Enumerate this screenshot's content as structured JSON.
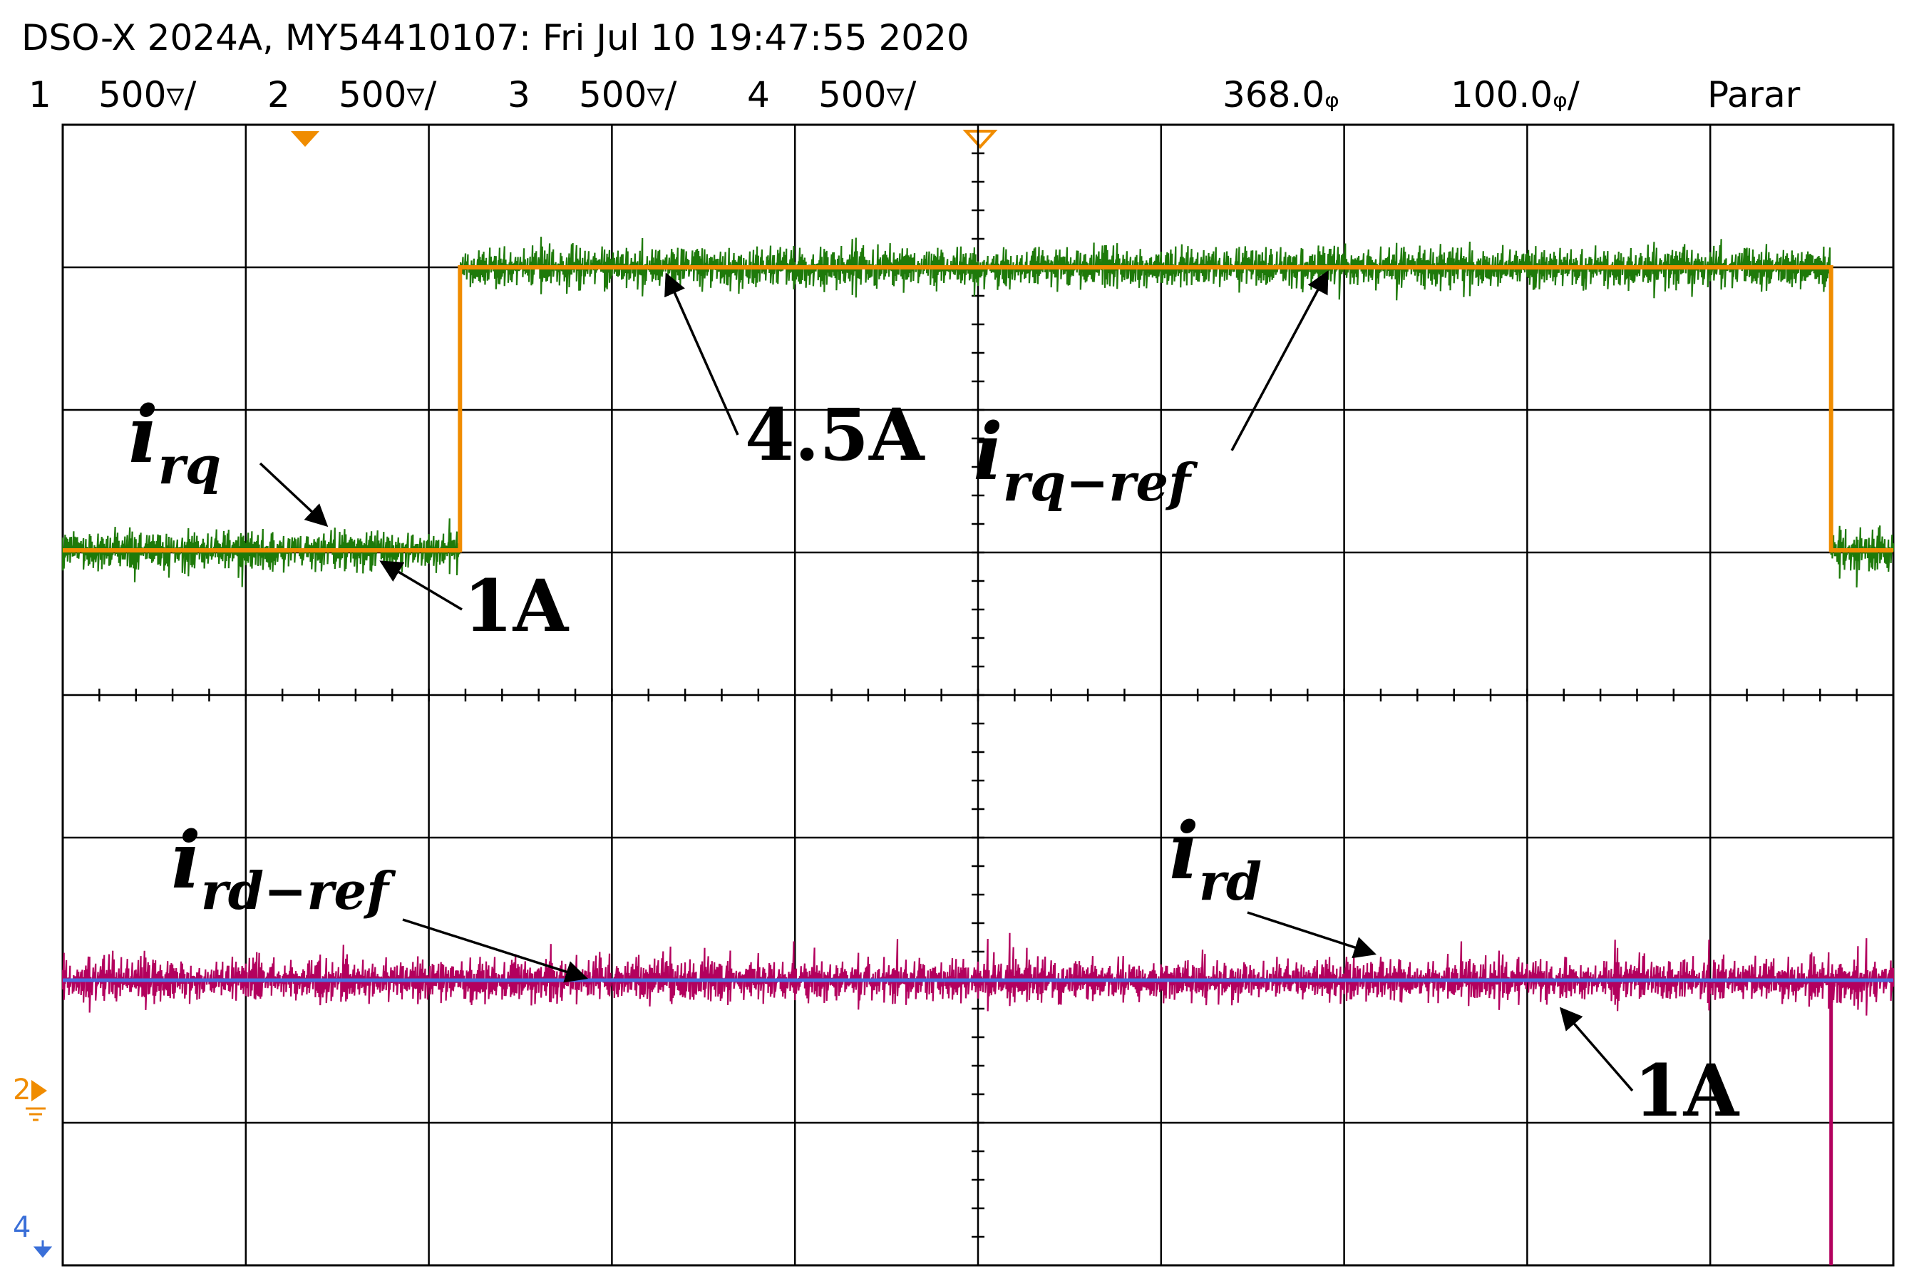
{
  "header": {
    "title": "DSO-X 2024A, MY54410107: Fri Jul 10 19:47:55 2020",
    "channels": [
      {
        "num": "1",
        "scale": "500▿/",
        "color": "#f39c12"
      },
      {
        "num": "2",
        "scale": "500▿/",
        "color": "#2ca02c"
      },
      {
        "num": "3",
        "scale": "500▿/",
        "color": "#3a6fd8"
      },
      {
        "num": "4",
        "scale": "500▿/",
        "color": "#e0107a"
      }
    ],
    "delay": "368.0ᵩ",
    "timebase": "100.0ᵩ/",
    "status": "Parar"
  },
  "markers": {
    "ch2_ground": "2",
    "ch4_ground": "4"
  },
  "annotations": {
    "irq": {
      "base": "i",
      "sub": "rq"
    },
    "irq_ref": {
      "base": "i",
      "sub": "rq−ref"
    },
    "ird_ref": {
      "base": "i",
      "sub": "rd−ref"
    },
    "ird": {
      "base": "i",
      "sub": "rd"
    },
    "val_45a": "4.5A",
    "val_1a_top": "1A",
    "val_1a_bottom": "1A"
  },
  "colors": {
    "irq_trace": "#1e7a0a",
    "irq_ref_trace": "#f08c00",
    "ird_trace": "#b3005e",
    "ird_ref_trace": "#4a6ee0",
    "grid": "#000000"
  },
  "chart_data": {
    "type": "line",
    "grid": true,
    "x_divisions": 10,
    "y_divisions": 8,
    "series": [
      {
        "name": "i_rq",
        "values": [
          {
            "x": 0,
            "y": 1.0
          },
          {
            "x": 2.17,
            "y": 1.0
          },
          {
            "x": 2.17,
            "y": 4.5
          },
          {
            "x": 9.66,
            "y": 4.5
          },
          {
            "x": 9.66,
            "y": 1.0
          },
          {
            "x": 10,
            "y": 1.0
          }
        ]
      },
      {
        "name": "i_rq-ref",
        "values": [
          {
            "x": 0,
            "y": 1.0
          },
          {
            "x": 2.17,
            "y": 1.0
          },
          {
            "x": 2.17,
            "y": 4.5
          },
          {
            "x": 9.66,
            "y": 4.5
          },
          {
            "x": 9.66,
            "y": 1.0
          },
          {
            "x": 10,
            "y": 1.0
          }
        ]
      },
      {
        "name": "i_rd",
        "values": [
          {
            "x": 0,
            "y": 1.0
          },
          {
            "x": 10,
            "y": 1.0
          }
        ]
      },
      {
        "name": "i_rd-ref",
        "values": [
          {
            "x": 0,
            "y": 1.0
          },
          {
            "x": 10,
            "y": 1.0
          }
        ]
      }
    ]
  }
}
